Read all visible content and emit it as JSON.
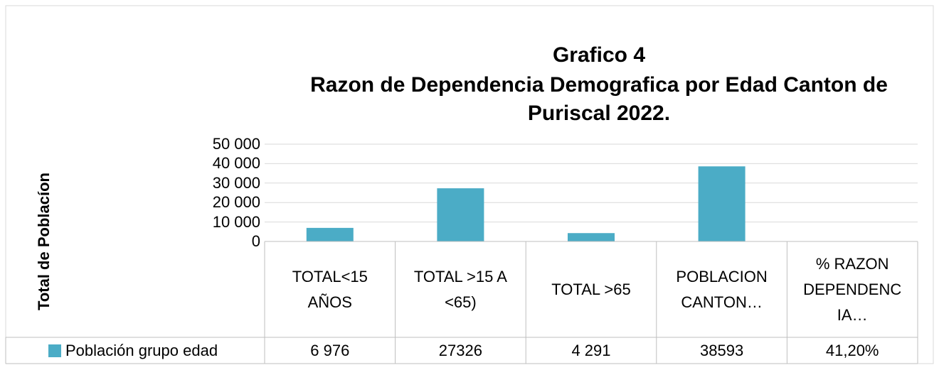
{
  "chart_data": {
    "type": "bar",
    "title": "Grafico 4",
    "subtitle": "Razon de Dependencia Demografica por Edad Canton de Puriscal 2022.",
    "y_label": "Total de Poblacíon",
    "categories": [
      "TOTAL<15 AÑOS",
      "TOTAL >15 A <65)",
      "TOTAL >65",
      "POBLACION CANTON…",
      "% RAZON DEPENDENCIA…"
    ],
    "series": [
      {
        "name": "Población grupo edad",
        "color": "#4bacc6",
        "values": [
          6976,
          27326,
          4291,
          38593,
          41.2
        ],
        "value_labels": [
          "6 976",
          "27326",
          "4 291",
          "38593",
          "41,20%"
        ]
      }
    ],
    "ylim": [
      0,
      50000
    ],
    "yticks": [
      0,
      {
        "value": 10000,
        "label": "10 000"
      },
      {
        "value": 20000,
        "label": "20 000"
      },
      {
        "value": 30000,
        "label": "30 000"
      },
      {
        "value": 40000,
        "label": "40 000"
      },
      {
        "value": 50000,
        "label": "50 000"
      }
    ],
    "grid": true,
    "data_table": true
  }
}
